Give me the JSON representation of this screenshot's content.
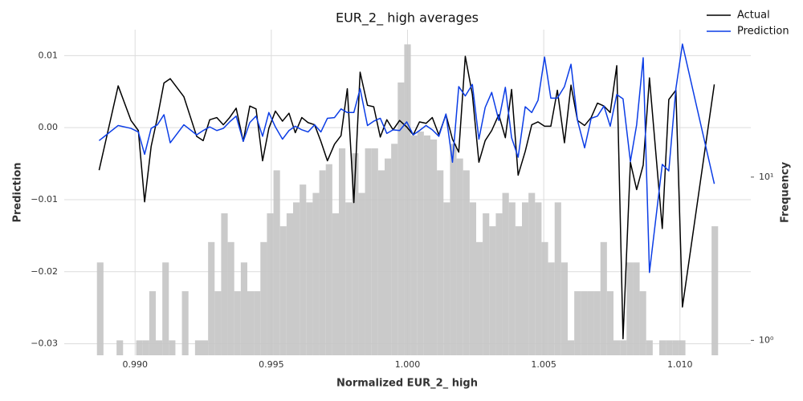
{
  "chart_data": {
    "type": "line",
    "title": "EUR_2_ high averages",
    "xlabel": "Normalized EUR_2_ high",
    "ylabel": "Prediction",
    "y2label": "Frequency",
    "x": [
      0.98868,
      0.98938,
      0.98985,
      0.99012,
      0.99035,
      0.99059,
      0.99082,
      0.99106,
      0.99129,
      0.99179,
      0.99226,
      0.9925,
      0.99274,
      0.993,
      0.99324,
      0.99347,
      0.99371,
      0.99397,
      0.99421,
      0.99444,
      0.99468,
      0.99491,
      0.99515,
      0.99541,
      0.99565,
      0.99588,
      0.99612,
      0.99635,
      0.99659,
      0.99682,
      0.99706,
      0.99732,
      0.99756,
      0.99779,
      0.99803,
      0.99826,
      0.99853,
      0.99876,
      0.999,
      0.99924,
      0.99947,
      0.99971,
      0.99997,
      1.00021,
      1.00044,
      1.00068,
      1.00091,
      1.00115,
      1.00141,
      1.00165,
      1.00188,
      1.00212,
      1.00238,
      1.00262,
      1.00285,
      1.00309,
      1.00335,
      1.00359,
      1.00382,
      1.00406,
      1.00432,
      1.00456,
      1.00479,
      1.00503,
      1.00526,
      1.0055,
      1.00576,
      1.006,
      1.00624,
      1.0065,
      1.00674,
      1.00697,
      1.00721,
      1.00744,
      1.00768,
      1.00791,
      1.00818,
      1.00841,
      1.00865,
      1.00888,
      1.00935,
      1.00959,
      1.00985,
      1.01009,
      1.01126
    ],
    "series": [
      {
        "name": "Actual",
        "color": "#000000",
        "values": [
          -0.0059,
          0.0058,
          0.001,
          -0.0004,
          -0.0103,
          -0.0026,
          0.0014,
          0.0062,
          0.0068,
          0.0043,
          -0.0012,
          -0.0018,
          0.0011,
          0.0014,
          0.0004,
          0.0014,
          0.0027,
          -0.0019,
          0.003,
          0.0026,
          -0.0046,
          -0.0001,
          0.0023,
          0.0009,
          0.002,
          -0.0007,
          0.0014,
          0.0007,
          0.0004,
          -0.0019,
          -0.0046,
          -0.0023,
          -0.0011,
          0.0054,
          -0.0104,
          0.0077,
          0.0031,
          0.0029,
          -0.0013,
          0.0011,
          -0.0003,
          0.001,
          0.0001,
          -0.001,
          0.0008,
          0.0006,
          0.0014,
          -0.001,
          0.0018,
          -0.0016,
          -0.0034,
          0.0099,
          0.0046,
          -0.0048,
          -0.0018,
          -0.0004,
          0.0018,
          -0.0014,
          0.0053,
          -0.0066,
          -0.0033,
          0.0004,
          0.0008,
          0.0002,
          0.0002,
          0.0052,
          -0.0021,
          0.0059,
          0.001,
          0.0003,
          0.0014,
          0.0034,
          0.003,
          0.0021,
          0.0086,
          -0.0293,
          -0.0048,
          -0.0086,
          -0.0052,
          0.0069,
          -0.014,
          0.0039,
          0.0052,
          -0.0249,
          0.006
        ]
      },
      {
        "name": "Prediction",
        "color": "#0b3de6",
        "values": [
          -0.0018,
          0.0003,
          -0.0001,
          -0.0006,
          -0.0037,
          -0.0001,
          0.0004,
          0.0018,
          -0.0021,
          0.0004,
          -0.001,
          -0.0004,
          0.0001,
          -0.0004,
          -0.0001,
          0.0008,
          0.0016,
          -0.0019,
          0.0007,
          0.0016,
          -0.0012,
          0.0021,
          0.0001,
          -0.0016,
          -0.0004,
          0.0002,
          -0.0003,
          -0.0006,
          0.0004,
          -0.0006,
          0.0013,
          0.0014,
          0.0026,
          0.0021,
          0.0021,
          0.0054,
          0.0003,
          0.0009,
          0.0013,
          -0.0008,
          -0.0003,
          -0.0004,
          0.0008,
          -0.001,
          -0.0004,
          0.0003,
          -0.0003,
          -0.0012,
          0.0019,
          -0.0048,
          0.0057,
          0.0044,
          0.006,
          -0.0016,
          0.0028,
          0.0049,
          0.001,
          0.0056,
          -0.0014,
          -0.0041,
          0.0029,
          0.0021,
          0.0038,
          0.0098,
          0.0041,
          0.0041,
          0.0057,
          0.0088,
          0.001,
          -0.0028,
          0.0013,
          0.0016,
          0.003,
          0.0002,
          0.0046,
          0.004,
          -0.0047,
          0.0004,
          0.0097,
          -0.0201,
          -0.0051,
          -0.006,
          0.0054,
          0.0116,
          -0.0078
        ]
      }
    ],
    "histogram": {
      "type": "histogram",
      "axis": "y2",
      "color": "#c4c4c4",
      "bins": [
        0.9886,
        0.98884,
        0.98908,
        0.98932,
        0.98956,
        0.9898,
        0.99004,
        0.99028,
        0.99052,
        0.99076,
        0.991,
        0.99124,
        0.99148,
        0.99172,
        0.99196,
        0.9922,
        0.99244,
        0.99268,
        0.99292,
        0.99316,
        0.9934,
        0.99364,
        0.99388,
        0.99412,
        0.99436,
        0.9946,
        0.99484,
        0.99508,
        0.99532,
        0.99556,
        0.9958,
        0.99604,
        0.99628,
        0.99652,
        0.99676,
        0.997,
        0.99724,
        0.99748,
        0.99772,
        0.99796,
        0.9982,
        0.99844,
        0.99868,
        0.99892,
        0.99916,
        0.9994,
        0.99964,
        0.99988,
        1.00012,
        1.00036,
        1.0006,
        1.00084,
        1.00108,
        1.00132,
        1.00156,
        1.0018,
        1.00204,
        1.00228,
        1.00252,
        1.00276,
        1.003,
        1.00324,
        1.00348,
        1.00372,
        1.00396,
        1.0042,
        1.00444,
        1.00468,
        1.00492,
        1.00516,
        1.0054,
        1.00564,
        1.00588,
        1.00612,
        1.00636,
        1.0066,
        1.00684,
        1.00708,
        1.00732,
        1.00756,
        1.0078,
        1.00804,
        1.00828,
        1.00852,
        1.00876,
        1.009,
        1.00924,
        1.00948,
        1.00972,
        1.00996,
        1.0102,
        1.01044,
        1.01068,
        1.01092,
        1.01116,
        1.0114
      ],
      "counts": [
        3,
        0,
        0,
        1,
        0,
        0,
        1,
        1,
        2,
        1,
        3,
        1,
        0,
        2,
        0,
        1,
        1,
        4,
        2,
        6,
        4,
        2,
        3,
        2,
        2,
        4,
        6,
        11,
        5,
        6,
        7,
        9,
        7,
        8,
        11,
        12,
        6,
        15,
        7,
        14,
        8,
        15,
        15,
        11,
        13,
        16,
        38,
        65,
        18,
        19,
        18,
        17,
        11,
        7,
        16,
        13,
        11,
        7,
        4,
        6,
        5,
        6,
        8,
        7,
        5,
        7,
        8,
        7,
        4,
        3,
        7,
        3,
        1,
        2,
        2,
        2,
        2,
        4,
        2,
        1,
        1,
        3,
        3,
        2,
        1,
        0,
        1,
        1,
        1,
        1,
        0,
        0,
        0,
        0,
        5
      ]
    },
    "xlim": [
      0.9874,
      1.0126
    ],
    "xticks": [
      {
        "value": 0.99,
        "label": "0.990"
      },
      0.995,
      {
        "value": 1,
        "label": "1.000"
      },
      1.005,
      {
        "value": 1.01,
        "label": "1.010"
      }
    ],
    "ylim": [
      -0.0316,
      0.0136
    ],
    "yticks": [
      {
        "value": -0.03,
        "label": "−0.03"
      },
      {
        "value": -0.02,
        "label": "−0.02"
      },
      {
        "value": -0.01,
        "label": "−0.01"
      },
      {
        "value": 0,
        "label": "0.00"
      },
      0.01
    ],
    "y2lim": [
      0.81,
      80
    ],
    "y2ticks": [
      {
        "value": 1,
        "label": "10⁰"
      },
      {
        "value": 10,
        "label": "10¹"
      }
    ],
    "y2scale": "log",
    "grid": true,
    "legend": "upper right"
  }
}
